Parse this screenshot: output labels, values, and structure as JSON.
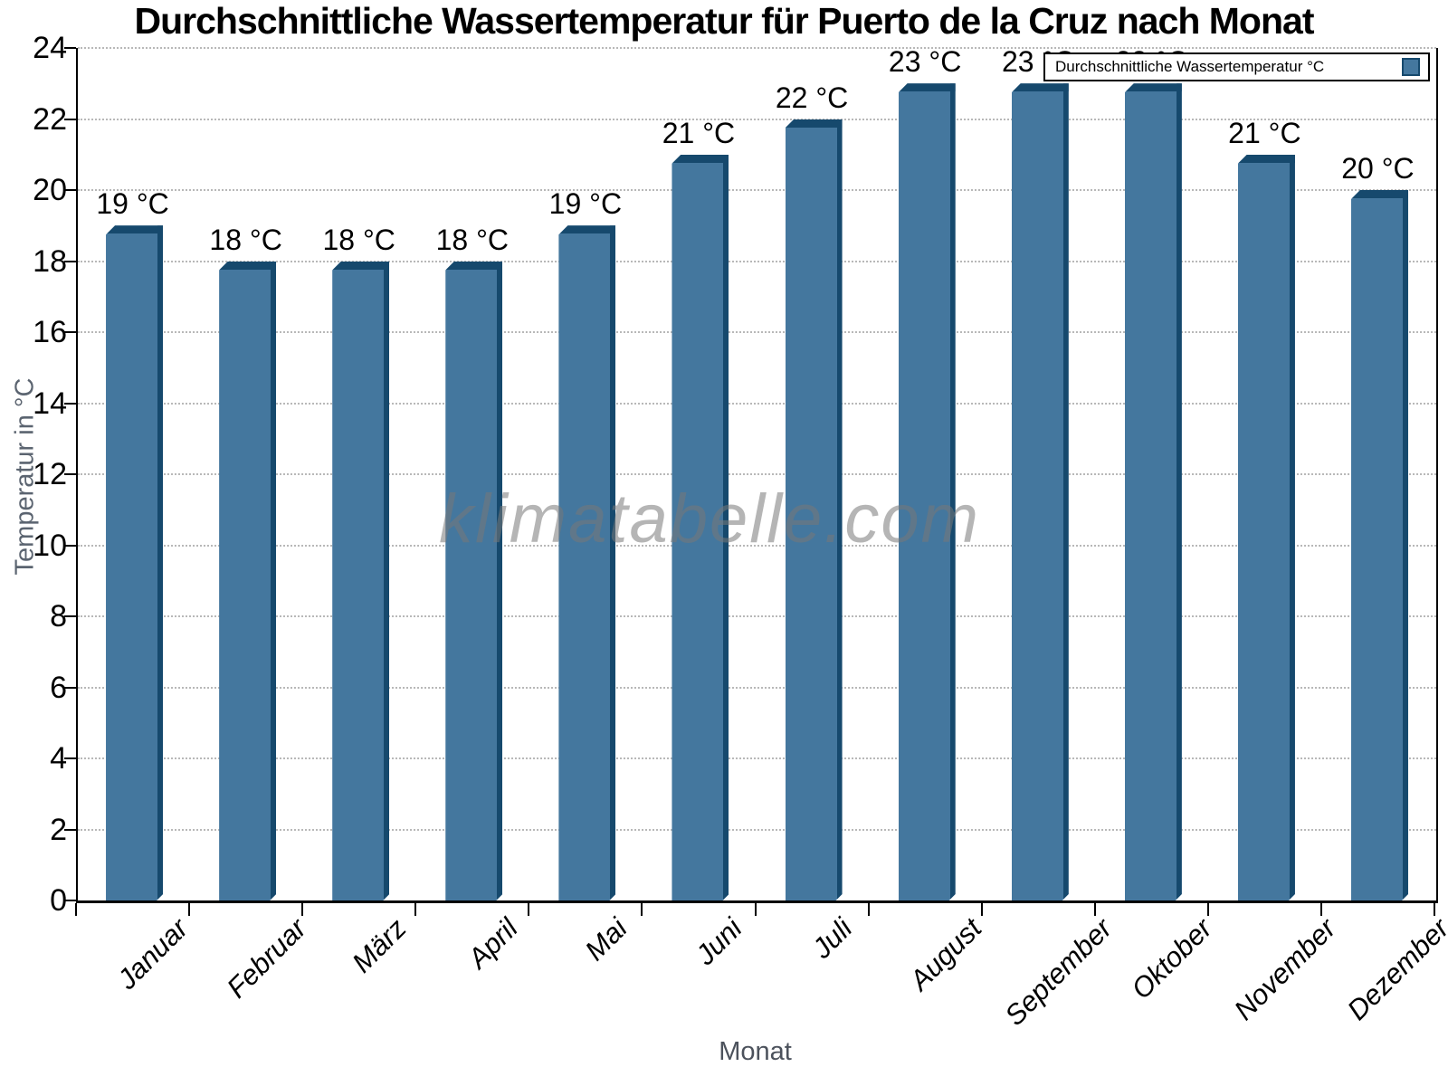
{
  "title": "Durchschnittliche Wassertemperatur für Puerto de la Cruz nach Monat",
  "watermark": "klimatabelle.com",
  "legend": {
    "label": "Durchschnittliche Wassertemperatur °C",
    "swatch_icon": "filled-square"
  },
  "axes": {
    "y_label": "Temperatur in °C",
    "x_label": "Monat",
    "y_ticks": [
      0,
      2,
      4,
      6,
      8,
      10,
      12,
      14,
      16,
      18,
      20,
      22,
      24
    ]
  },
  "colors": {
    "bar_fill": "#44779E",
    "bar_edge": "#16496D",
    "grid": "#b8b8b8",
    "axis_title_gray": "#5b6470",
    "watermark_gray": "#787878"
  },
  "chart_data": {
    "type": "bar",
    "title": "Durchschnittliche Wassertemperatur für Puerto de la Cruz nach Monat",
    "categories": [
      "Januar",
      "Februar",
      "März",
      "April",
      "Mai",
      "Juni",
      "Juli",
      "August",
      "September",
      "Oktober",
      "November",
      "Dezember"
    ],
    "values": [
      19,
      18,
      18,
      18,
      19,
      21,
      22,
      23,
      23,
      23,
      21,
      20
    ],
    "bar_labels": [
      "19 °C",
      "18 °C",
      "18 °C",
      "18 °C",
      "19 °C",
      "21 °C",
      "22 °C",
      "23 °C",
      "23 °C",
      "23 °C",
      "21 °C",
      "20 °C"
    ],
    "series_name": "Durchschnittliche Wassertemperatur °C",
    "xlabel": "Monat",
    "ylabel": "Temperatur in °C",
    "ylim": [
      0,
      24
    ],
    "y_tick_step": 2,
    "grid": "horizontal-dotted",
    "legend_position": "top-right",
    "bar_color": "#44779E"
  }
}
